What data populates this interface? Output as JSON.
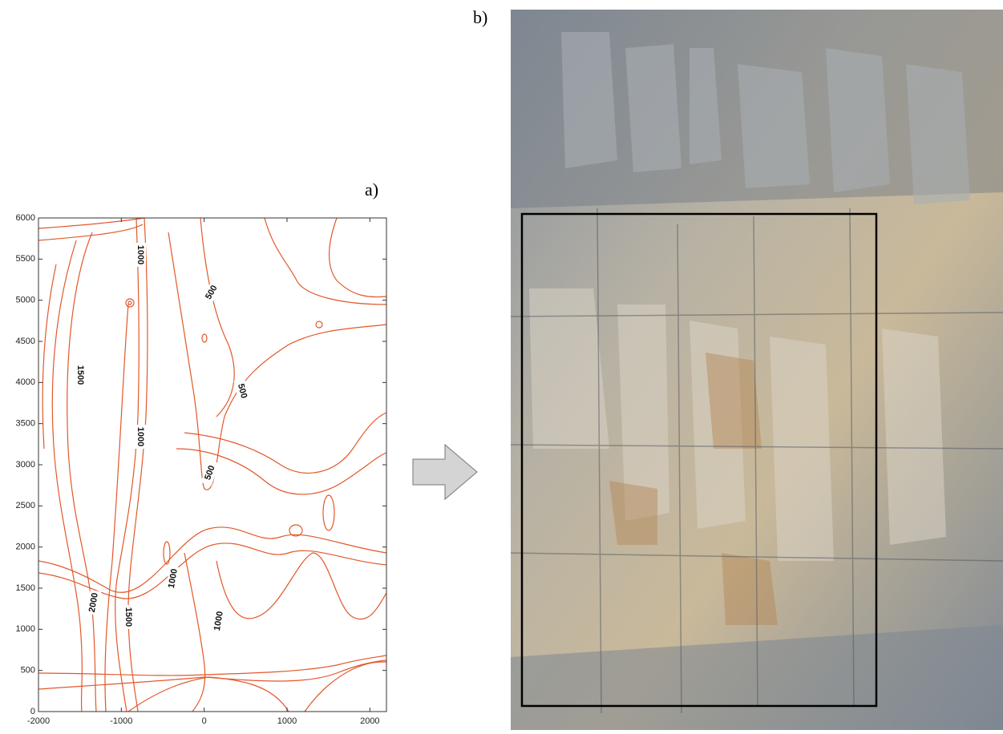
{
  "chart_data": {
    "type": "contour",
    "panel_label": "a)",
    "xlim": [
      -2000,
      2200
    ],
    "ylim": [
      0,
      6000
    ],
    "xticks": [
      -2000,
      -1000,
      0,
      1000,
      2000
    ],
    "yticks": [
      0,
      500,
      1000,
      1500,
      2000,
      2500,
      3000,
      3500,
      4000,
      4500,
      5000,
      5500,
      6000
    ],
    "contour_labels": [
      1000,
      500,
      1500,
      500,
      1000,
      500,
      1000,
      2000,
      1500,
      1000
    ],
    "color": "#e2582a"
  },
  "photo_panel": {
    "label": "b)"
  }
}
